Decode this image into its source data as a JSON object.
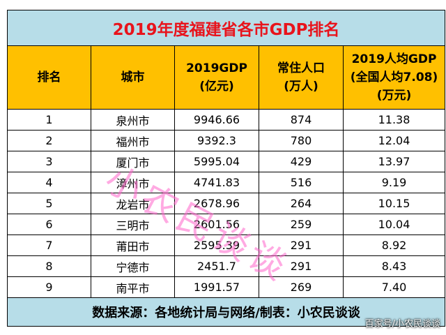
{
  "title": "2019年度福建省各市GDP排名",
  "headers": {
    "rank": "排名",
    "city": "城市",
    "gdp_line1": "2019GDP",
    "gdp_line2": "(亿元)",
    "pop_line1": "常住人口",
    "pop_line2": "(万人)",
    "percap_line1": "2019人均GDP",
    "percap_line2": "(全国人均7.08)",
    "percap_line3": "(万元)"
  },
  "rows": [
    {
      "rank": "1",
      "city": "泉州市",
      "gdp": "9946.66",
      "pop": "874",
      "percap": "11.38"
    },
    {
      "rank": "2",
      "city": "福州市",
      "gdp": "9392.3",
      "pop": "780",
      "percap": "12.04"
    },
    {
      "rank": "3",
      "city": "厦门市",
      "gdp": "5995.04",
      "pop": "429",
      "percap": "13.97"
    },
    {
      "rank": "4",
      "city": "漳州市",
      "gdp": "4741.83",
      "pop": "516",
      "percap": "9.19"
    },
    {
      "rank": "5",
      "city": "龙岩市",
      "gdp": "2678.96",
      "pop": "264",
      "percap": "10.15"
    },
    {
      "rank": "6",
      "city": "三明市",
      "gdp": "2601.56",
      "pop": "259",
      "percap": "10.04"
    },
    {
      "rank": "7",
      "city": "莆田市",
      "gdp": "2595.39",
      "pop": "291",
      "percap": "8.92"
    },
    {
      "rank": "8",
      "city": "宁德市",
      "gdp": "2451.7",
      "pop": "291",
      "percap": "8.43"
    },
    {
      "rank": "9",
      "city": "南平市",
      "gdp": "1991.57",
      "pop": "269",
      "percap": "7.40"
    }
  ],
  "footer": "数据来源：各地统计局与网络/制表：小农民谈谈",
  "watermark": "小农民谈谈",
  "credit": "百家号/小农民谈谈",
  "colors": {
    "title_bg": "#b7dde8",
    "title_text": "#e8141c",
    "header_bg": "#ffc000",
    "watermark": "#ff66cc"
  }
}
